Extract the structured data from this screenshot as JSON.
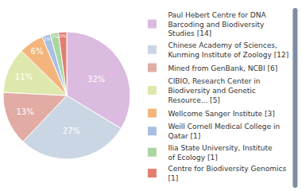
{
  "chart_data": {
    "type": "pie",
    "categories": [
      "Paul Hebert Centre for DNA Barcoding and Biodiversity Studies [14]",
      "Chinese Academy of Sciences, Kunming Institute of Zoology [12]",
      "Mined from GenBank, NCBI [6]",
      "CIBIO, Research Center in Biodiversity and Genetic Resource... [5]",
      "Wellcome Sanger Institute [3]",
      "Weill Cornell Medical College in Qatar [1]",
      "Ilia State University, Institute of Ecology [1]",
      "Centre for Biodiversity Genomics [1]"
    ],
    "values": [
      32,
      27,
      13,
      11,
      6,
      2,
      2,
      2
    ],
    "value_labels": [
      "32%",
      "27%",
      "13%",
      "11%",
      "6%",
      "2%",
      "2%",
      "2%"
    ],
    "colors": [
      "#dcbbe0",
      "#cbd6e4",
      "#e2aba4",
      "#dfe8ac",
      "#f4b57c",
      "#a9c0e2",
      "#a9d6a1",
      "#e27e6f"
    ],
    "data_labels": true
  }
}
